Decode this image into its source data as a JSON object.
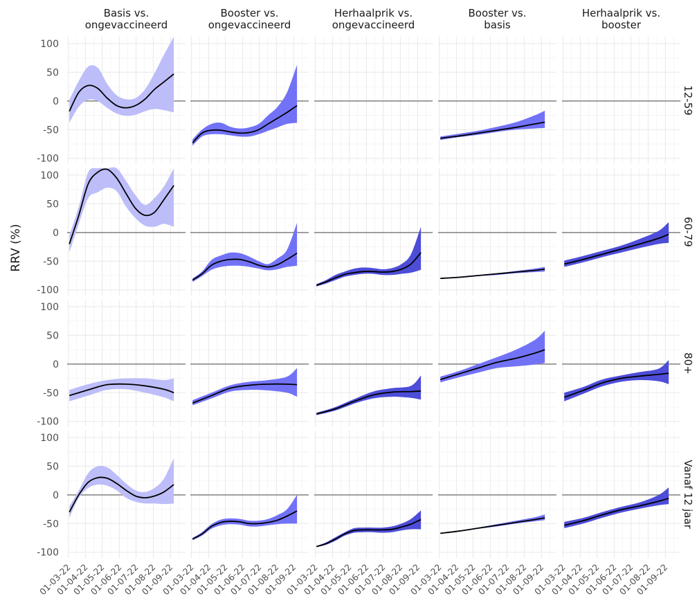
{
  "chart_data": {
    "type": "line",
    "ylabel": "RRV (%)",
    "xlabel": "",
    "ylim": [
      -110,
      112
    ],
    "yticks": [
      100,
      50,
      0,
      -50,
      -100
    ],
    "ytick_labels": [
      "100",
      "50",
      "0",
      "-50",
      "-100"
    ],
    "xlim": [
      "2022-02-27",
      "2022-09-28"
    ],
    "xtick_labels": [
      "01-03-22",
      "01-04-22",
      "01-05-22",
      "01-06-22",
      "01-07-22",
      "01-08-22",
      "01-09-22"
    ],
    "xtick_dates": [
      "2022-03-01",
      "2022-04-01",
      "2022-05-01",
      "2022-06-01",
      "2022-07-01",
      "2022-08-01",
      "2022-09-01"
    ],
    "reference_line": 0,
    "grid": true,
    "columns": [
      "Basis vs.\nongevaccineerd",
      "Booster vs.\nongevaccineerd",
      "Herhaalprik vs.\nongevaccineerd",
      "Booster vs.\nbasis",
      "Herhaalprik vs.\nbooster"
    ],
    "rows": [
      "12-59",
      "60-79",
      "80+",
      "Vanaf 12 jaar"
    ],
    "colors": {
      "light_band": "#bdbdf9",
      "dark_band": "#7272f7",
      "darkest_band": "#4d4dd9",
      "line": "#000000",
      "zero_line": "#808080",
      "grid": "#ebebeb"
    },
    "panels": [
      {
        "row": "12-59",
        "column": "Basis vs.\nongevaccineerd",
        "band": "light",
        "x": [
          "2022-03-03",
          "2022-03-20",
          "2022-04-06",
          "2022-04-23",
          "2022-05-10",
          "2022-05-27",
          "2022-06-13",
          "2022-06-30",
          "2022-07-17",
          "2022-08-03",
          "2022-08-20",
          "2022-09-07"
        ],
        "y": [
          -18,
          15,
          27,
          22,
          5,
          -8,
          -12,
          -8,
          3,
          20,
          33,
          47
        ],
        "lower": [
          -38,
          -10,
          2,
          0,
          -12,
          -22,
          -26,
          -24,
          -18,
          -14,
          -16,
          -20
        ],
        "upper": [
          2,
          35,
          60,
          58,
          30,
          10,
          3,
          5,
          20,
          48,
          80,
          112
        ]
      },
      {
        "row": "12-59",
        "column": "Booster vs.\nongevaccineerd",
        "band": "medium",
        "x": [
          "2022-03-03",
          "2022-03-20",
          "2022-04-06",
          "2022-04-23",
          "2022-05-10",
          "2022-05-27",
          "2022-06-13",
          "2022-06-30",
          "2022-07-17",
          "2022-08-03",
          "2022-08-20",
          "2022-09-07"
        ],
        "y": [
          -73,
          -56,
          -51,
          -51,
          -54,
          -56,
          -55,
          -50,
          -40,
          -30,
          -20,
          -8
        ],
        "lower": [
          -78,
          -62,
          -58,
          -58,
          -60,
          -62,
          -62,
          -58,
          -52,
          -46,
          -40,
          -38
        ],
        "upper": [
          -67,
          -50,
          -40,
          -38,
          -45,
          -48,
          -46,
          -40,
          -25,
          -10,
          15,
          63
        ]
      },
      {
        "row": "12-59",
        "column": "Booster vs.\nbasis",
        "band": "medium",
        "x": [
          "2022-03-03",
          "2022-04-06",
          "2022-05-10",
          "2022-06-13",
          "2022-07-17",
          "2022-08-20",
          "2022-09-07"
        ],
        "y": [
          -65,
          -61,
          -56,
          -51,
          -46,
          -40,
          -37
        ],
        "lower": [
          -68,
          -63,
          -59,
          -54,
          -50,
          -48,
          -47
        ],
        "upper": [
          -62,
          -57,
          -52,
          -45,
          -37,
          -25,
          -17
        ]
      },
      {
        "row": "60-79",
        "column": "Basis vs.\nongevaccineerd",
        "band": "light",
        "x": [
          "2022-03-03",
          "2022-03-20",
          "2022-04-06",
          "2022-04-23",
          "2022-05-10",
          "2022-05-27",
          "2022-06-13",
          "2022-06-30",
          "2022-07-17",
          "2022-08-03",
          "2022-08-20",
          "2022-09-07"
        ],
        "y": [
          -20,
          30,
          85,
          105,
          110,
          95,
          68,
          42,
          30,
          35,
          57,
          82
        ],
        "lower": [
          -35,
          15,
          60,
          70,
          78,
          72,
          45,
          25,
          12,
          10,
          15,
          10
        ],
        "upper": [
          -5,
          45,
          105,
          112,
          112,
          112,
          90,
          65,
          48,
          60,
          80,
          112
        ]
      },
      {
        "row": "60-79",
        "column": "Booster vs.\nongevaccineerd",
        "band": "medium",
        "x": [
          "2022-03-03",
          "2022-03-20",
          "2022-04-06",
          "2022-04-23",
          "2022-05-10",
          "2022-05-27",
          "2022-06-13",
          "2022-06-30",
          "2022-07-17",
          "2022-08-03",
          "2022-08-20",
          "2022-09-07"
        ],
        "y": [
          -83,
          -72,
          -57,
          -50,
          -47,
          -47,
          -51,
          -57,
          -60,
          -56,
          -47,
          -36
        ],
        "lower": [
          -86,
          -76,
          -65,
          -60,
          -58,
          -58,
          -60,
          -63,
          -66,
          -64,
          -60,
          -58
        ],
        "upper": [
          -80,
          -68,
          -48,
          -40,
          -35,
          -36,
          -42,
          -50,
          -55,
          -45,
          -30,
          17
        ]
      },
      {
        "row": "60-79",
        "column": "Herhaalprik vs.\nongevaccineerd",
        "band": "dark",
        "x": [
          "2022-03-03",
          "2022-03-20",
          "2022-04-06",
          "2022-04-23",
          "2022-05-10",
          "2022-05-27",
          "2022-06-13",
          "2022-06-30",
          "2022-07-17",
          "2022-08-03",
          "2022-08-20",
          "2022-09-07"
        ],
        "y": [
          -92,
          -86,
          -79,
          -73,
          -70,
          -68,
          -68,
          -69,
          -68,
          -64,
          -55,
          -35
        ],
        "lower": [
          -94,
          -89,
          -83,
          -77,
          -74,
          -72,
          -72,
          -74,
          -74,
          -72,
          -70,
          -65
        ],
        "upper": [
          -90,
          -83,
          -74,
          -68,
          -63,
          -61,
          -62,
          -64,
          -62,
          -55,
          -38,
          10
        ]
      },
      {
        "row": "60-79",
        "column": "Booster vs.\nbasis",
        "band": "medium",
        "x": [
          "2022-03-03",
          "2022-04-06",
          "2022-05-10",
          "2022-06-13",
          "2022-07-17",
          "2022-08-20",
          "2022-09-07"
        ],
        "y": [
          -80,
          -78,
          -75,
          -72,
          -69,
          -66,
          -64
        ],
        "lower": [
          -81,
          -79,
          -76,
          -74,
          -71,
          -69,
          -68
        ],
        "upper": [
          -79,
          -77,
          -74,
          -71,
          -67,
          -63,
          -60
        ]
      },
      {
        "row": "60-79",
        "column": "Herhaalprik vs.\nbooster",
        "band": "dark",
        "x": [
          "2022-03-03",
          "2022-04-06",
          "2022-05-10",
          "2022-06-13",
          "2022-07-17",
          "2022-08-20",
          "2022-09-07"
        ],
        "y": [
          -55,
          -47,
          -38,
          -29,
          -20,
          -10,
          -3
        ],
        "lower": [
          -60,
          -52,
          -43,
          -35,
          -27,
          -20,
          -18
        ],
        "upper": [
          -49,
          -41,
          -32,
          -23,
          -11,
          3,
          18
        ]
      },
      {
        "row": "80+",
        "column": "Basis vs.\nongevaccineerd",
        "band": "light",
        "x": [
          "2022-03-03",
          "2022-04-06",
          "2022-05-10",
          "2022-06-13",
          "2022-07-17",
          "2022-08-20",
          "2022-09-07"
        ],
        "y": [
          -55,
          -45,
          -36,
          -35,
          -38,
          -44,
          -50
        ],
        "lower": [
          -65,
          -55,
          -45,
          -44,
          -50,
          -58,
          -65
        ],
        "upper": [
          -45,
          -35,
          -28,
          -25,
          -25,
          -28,
          -25
        ]
      },
      {
        "row": "80+",
        "column": "Booster vs.\nongevaccineerd",
        "band": "medium",
        "x": [
          "2022-03-03",
          "2022-04-06",
          "2022-05-10",
          "2022-06-13",
          "2022-07-17",
          "2022-08-20",
          "2022-09-07"
        ],
        "y": [
          -68,
          -55,
          -42,
          -37,
          -35,
          -35,
          -36
        ],
        "lower": [
          -72,
          -60,
          -48,
          -45,
          -46,
          -50,
          -57
        ],
        "upper": [
          -63,
          -50,
          -37,
          -31,
          -28,
          -22,
          -7
        ]
      },
      {
        "row": "80+",
        "column": "Herhaalprik vs.\nongevaccineerd",
        "band": "dark",
        "x": [
          "2022-03-03",
          "2022-04-06",
          "2022-05-10",
          "2022-06-13",
          "2022-07-17",
          "2022-08-20",
          "2022-09-07"
        ],
        "y": [
          -87,
          -78,
          -65,
          -54,
          -49,
          -48,
          -47
        ],
        "lower": [
          -89,
          -81,
          -69,
          -60,
          -57,
          -59,
          -62
        ],
        "upper": [
          -85,
          -75,
          -61,
          -48,
          -42,
          -38,
          -20
        ]
      },
      {
        "row": "80+",
        "column": "Booster vs.\nbasis",
        "band": "medium",
        "x": [
          "2022-03-03",
          "2022-04-06",
          "2022-05-10",
          "2022-06-13",
          "2022-07-17",
          "2022-08-20",
          "2022-09-07"
        ],
        "y": [
          -27,
          -17,
          -7,
          3,
          10,
          19,
          25
        ],
        "lower": [
          -32,
          -23,
          -15,
          -7,
          -4,
          -1,
          2
        ],
        "upper": [
          -22,
          -12,
          0,
          12,
          25,
          42,
          58
        ]
      },
      {
        "row": "80+",
        "column": "Herhaalprik vs.\nbooster",
        "band": "dark",
        "x": [
          "2022-03-03",
          "2022-04-06",
          "2022-05-10",
          "2022-06-13",
          "2022-07-17",
          "2022-08-20",
          "2022-09-07"
        ],
        "y": [
          -58,
          -46,
          -33,
          -25,
          -21,
          -18,
          -16
        ],
        "lower": [
          -65,
          -52,
          -39,
          -31,
          -28,
          -30,
          -35
        ],
        "upper": [
          -50,
          -40,
          -27,
          -20,
          -14,
          -8,
          7
        ]
      },
      {
        "row": "Vanaf 12 jaar",
        "column": "Basis vs.\nongevaccineerd",
        "band": "light",
        "x": [
          "2022-03-03",
          "2022-03-20",
          "2022-04-06",
          "2022-04-23",
          "2022-05-10",
          "2022-05-27",
          "2022-06-13",
          "2022-06-30",
          "2022-07-17",
          "2022-08-03",
          "2022-08-20",
          "2022-09-07"
        ],
        "y": [
          -30,
          0,
          22,
          30,
          29,
          20,
          8,
          -2,
          -5,
          -2,
          5,
          18
        ],
        "lower": [
          -40,
          -5,
          12,
          18,
          16,
          8,
          -5,
          -12,
          -15,
          -15,
          -16,
          -15
        ],
        "upper": [
          -20,
          8,
          38,
          50,
          48,
          35,
          20,
          8,
          5,
          12,
          28,
          64
        ]
      },
      {
        "row": "Vanaf 12 jaar",
        "column": "Booster vs.\nongevaccineerd",
        "band": "medium",
        "x": [
          "2022-03-03",
          "2022-03-20",
          "2022-04-06",
          "2022-04-23",
          "2022-05-10",
          "2022-05-27",
          "2022-06-13",
          "2022-06-30",
          "2022-07-17",
          "2022-08-03",
          "2022-08-20",
          "2022-09-07"
        ],
        "y": [
          -77,
          -68,
          -55,
          -48,
          -46,
          -47,
          -50,
          -50,
          -48,
          -44,
          -37,
          -28
        ],
        "lower": [
          -79,
          -71,
          -59,
          -53,
          -51,
          -52,
          -55,
          -55,
          -53,
          -51,
          -50,
          -50
        ],
        "upper": [
          -75,
          -65,
          -51,
          -43,
          -41,
          -42,
          -45,
          -45,
          -42,
          -35,
          -25,
          0
        ]
      },
      {
        "row": "Vanaf 12 jaar",
        "column": "Herhaalprik vs.\nongevaccineerd",
        "band": "dark",
        "x": [
          "2022-03-03",
          "2022-03-20",
          "2022-04-06",
          "2022-04-23",
          "2022-05-10",
          "2022-05-27",
          "2022-06-13",
          "2022-06-30",
          "2022-07-17",
          "2022-08-03",
          "2022-08-20",
          "2022-09-07"
        ],
        "y": [
          -90,
          -85,
          -77,
          -68,
          -62,
          -61,
          -61,
          -61,
          -60,
          -56,
          -51,
          -43
        ],
        "lower": [
          -91,
          -87,
          -80,
          -71,
          -66,
          -65,
          -65,
          -66,
          -65,
          -62,
          -60,
          -60
        ],
        "upper": [
          -89,
          -83,
          -74,
          -65,
          -58,
          -57,
          -57,
          -57,
          -55,
          -50,
          -42,
          -27
        ]
      },
      {
        "row": "Vanaf 12 jaar",
        "column": "Booster vs.\nbasis",
        "band": "medium",
        "x": [
          "2022-03-03",
          "2022-04-06",
          "2022-05-10",
          "2022-06-13",
          "2022-07-17",
          "2022-08-20",
          "2022-09-07"
        ],
        "y": [
          -67,
          -63,
          -58,
          -53,
          -48,
          -43,
          -40
        ],
        "lower": [
          -68,
          -64,
          -59,
          -55,
          -50,
          -46,
          -44
        ],
        "upper": [
          -66,
          -62,
          -57,
          -51,
          -45,
          -39,
          -34
        ]
      },
      {
        "row": "Vanaf 12 jaar",
        "column": "Herhaalprik vs.\nbooster",
        "band": "dark",
        "x": [
          "2022-03-03",
          "2022-04-06",
          "2022-05-10",
          "2022-06-13",
          "2022-07-17",
          "2022-08-20",
          "2022-09-07"
        ],
        "y": [
          -53,
          -45,
          -35,
          -26,
          -19,
          -11,
          -6
        ],
        "lower": [
          -58,
          -50,
          -40,
          -31,
          -24,
          -18,
          -16
        ],
        "upper": [
          -47,
          -40,
          -30,
          -21,
          -13,
          0,
          13
        ]
      }
    ]
  }
}
